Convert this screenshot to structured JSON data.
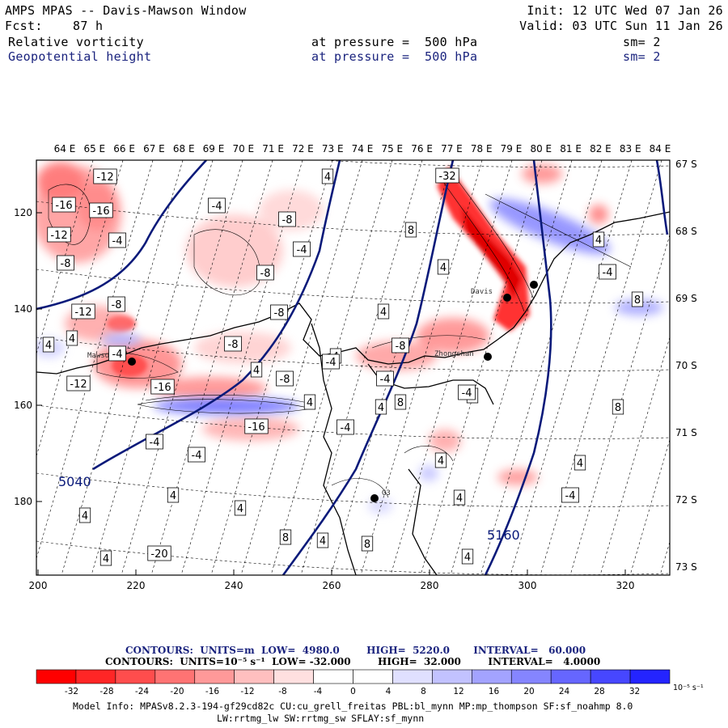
{
  "header": {
    "title": "AMPS MPAS -- Davis-Mawson Window",
    "fcst_label": "Fcst:",
    "fcst_value": "87 h",
    "init": "Init: 12 UTC Wed 07 Jan 26",
    "valid": "Valid: 03 UTC Sun 11 Jan 26",
    "field1_name": "Relative vorticity",
    "field1_level": "at pressure =  500 hPa",
    "field1_sm": "sm= 2",
    "field2_name": "Geopotential height",
    "field2_level": "at pressure =  500 hPa",
    "field2_sm": "sm= 2"
  },
  "map": {
    "lon_labels": [
      "64 E",
      "65 E",
      "66 E",
      "67 E",
      "68 E",
      "69 E",
      "70 E",
      "71 E",
      "72 E",
      "73 E",
      "74 E",
      "75 E",
      "76 E",
      "77 E",
      "78 E",
      "79 E",
      "80 E",
      "81 E",
      "82 E",
      "83 E",
      "84 E"
    ],
    "lat_labels": [
      "67 S",
      "68 S",
      "69 S",
      "70 S",
      "71 S",
      "72 S",
      "73 S"
    ],
    "x_ticks": [
      "200",
      "220",
      "240",
      "260",
      "280",
      "300",
      "320"
    ],
    "y_ticks": [
      "120",
      "140",
      "160",
      "180"
    ],
    "stations": [
      "Davis",
      "Zhongshan",
      "Mawson",
      "G3"
    ],
    "height_contour_labels": [
      "5040",
      "5160"
    ],
    "vorticity_labels": [
      {
        "t": "-12"
      },
      {
        "t": "-16"
      },
      {
        "t": "-16"
      },
      {
        "t": "-12"
      },
      {
        "t": "-4"
      },
      {
        "t": "-8"
      },
      {
        "t": "-4"
      },
      {
        "t": "4"
      },
      {
        "t": "-8"
      },
      {
        "t": "-4"
      },
      {
        "t": "-8"
      },
      {
        "t": "-12"
      },
      {
        "t": "-8"
      },
      {
        "t": "4"
      },
      {
        "t": "4"
      },
      {
        "t": "-8"
      },
      {
        "t": "-8"
      },
      {
        "t": "-4"
      },
      {
        "t": "4"
      },
      {
        "t": "-16"
      },
      {
        "t": "-8"
      },
      {
        "t": "-12"
      },
      {
        "t": "8"
      },
      {
        "t": "-4"
      },
      {
        "t": "4"
      },
      {
        "t": "-4"
      },
      {
        "t": "-8"
      },
      {
        "t": "-4"
      },
      {
        "t": "-16"
      },
      {
        "t": "-4"
      },
      {
        "t": "-4"
      },
      {
        "t": "4"
      },
      {
        "t": "4"
      },
      {
        "t": "8"
      },
      {
        "t": "-4"
      },
      {
        "t": "4"
      },
      {
        "t": "4"
      },
      {
        "t": "4"
      },
      {
        "t": "4"
      },
      {
        "t": "8"
      },
      {
        "t": "4"
      },
      {
        "t": "8"
      },
      {
        "t": "4"
      },
      {
        "t": "-20"
      },
      {
        "t": "-32"
      },
      {
        "t": "8"
      },
      {
        "t": "4"
      },
      {
        "t": "4"
      },
      {
        "t": "-4"
      },
      {
        "t": "4"
      },
      {
        "t": "4"
      },
      {
        "t": "8"
      },
      {
        "t": "4"
      },
      {
        "t": "4"
      },
      {
        "t": "-4"
      },
      {
        "t": "8"
      }
    ]
  },
  "footer": {
    "contours1": "CONTOURS:  UNITS=m  LOW=  4980.0        HIGH=  5220.0       INTERVAL=   60.000",
    "contours2": "CONTOURS:  UNITS=10⁻⁵ s⁻¹  LOW= -32.000        HIGH=  32.000        INTERVAL=   4.0000",
    "colorbar_labels": [
      "-32",
      "-28",
      "-24",
      "-20",
      "-16",
      "-12",
      "-8",
      "-4",
      "0",
      "4",
      "8",
      "12",
      "16",
      "20",
      "24",
      "28",
      "32"
    ],
    "colorbar_units": "10⁻⁵ s⁻¹",
    "colorbar_colors": [
      "#ff0000",
      "#ff2626",
      "#ff4d4d",
      "#ff7373",
      "#ff9999",
      "#ffbfbf",
      "#ffe0e0",
      "#ffffff",
      "#ffffff",
      "#e0e0ff",
      "#c2c2ff",
      "#a3a3ff",
      "#8585ff",
      "#6666ff",
      "#4747ff",
      "#2424ff"
    ],
    "model_info_1": "Model Info: MPASv8.2.3-194-gf29cd82c CU:cu_grell_freitas PBL:bl_mynn MP:mp_thompson SF:sf_noahmp 8.0",
    "model_info_2": "LW:rrtmg_lw SW:rrtmg_sw SFLAY:sf_mynn"
  }
}
